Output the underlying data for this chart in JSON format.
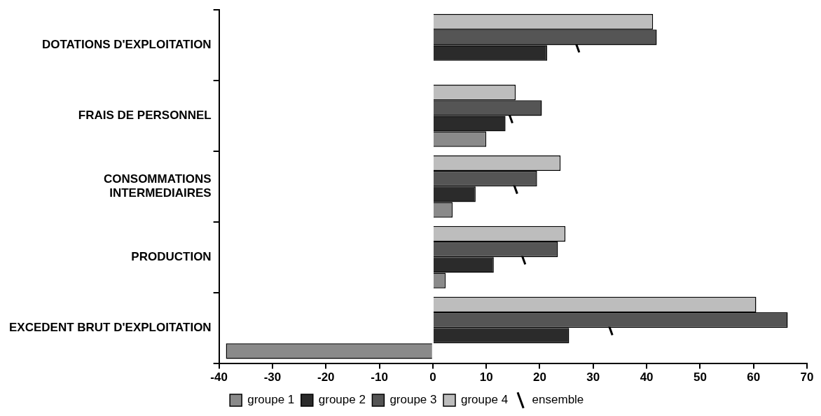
{
  "chart_data": {
    "type": "bar",
    "orientation": "horizontal",
    "categories": [
      "DOTATIONS D'EXPLOITATION",
      "FRAIS DE PERSONNEL",
      "CONSOMMATIONS INTERMEDIAIRES",
      "PRODUCTION",
      "EXCEDENT BRUT D'EXPLOITATION"
    ],
    "series": [
      {
        "name": "groupe 1",
        "color": "#8a8a8a",
        "values": [
          null,
          10.0,
          3.7,
          2.4,
          -38.7
        ]
      },
      {
        "name": "groupe 2",
        "color": "#2b2b2b",
        "values": [
          21.4,
          13.6,
          8.0,
          11.4,
          25.5
        ]
      },
      {
        "name": "groupe 3",
        "color": "#555555",
        "values": [
          41.9,
          20.4,
          19.5,
          23.4,
          66.4
        ]
      },
      {
        "name": "groupe 4",
        "color": "#bdbdbd",
        "values": [
          41.2,
          15.5,
          23.9,
          24.8,
          60.5
        ]
      },
      {
        "name": "ensemble",
        "type": "scatter",
        "color": "#000000",
        "values": [
          26.9,
          14.4,
          15.3,
          16.8,
          33.1
        ]
      }
    ],
    "xlim": [
      -40,
      70
    ],
    "xticks": [
      -40,
      -30,
      -20,
      -10,
      0,
      10,
      20,
      30,
      40,
      50,
      60,
      70
    ],
    "grid": false,
    "legend": "bottom"
  }
}
